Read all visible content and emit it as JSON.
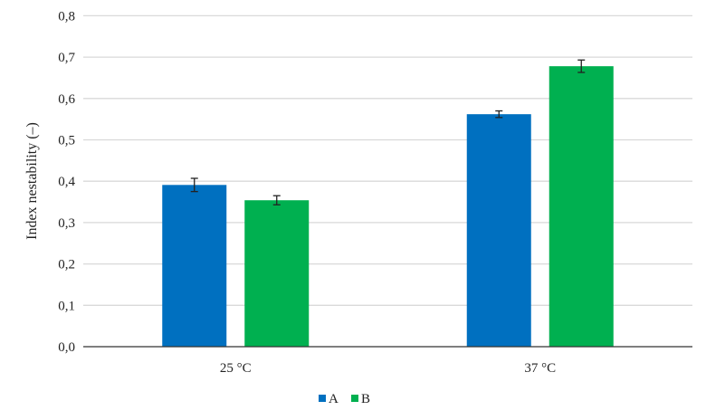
{
  "chart_data": {
    "type": "bar",
    "title": "",
    "xlabel": "",
    "ylabel": "Index nestability (–)",
    "categories": [
      "25 °C",
      "37 °C"
    ],
    "series": [
      {
        "name": "A",
        "values": [
          0.391,
          0.562
        ],
        "errors": [
          0.016,
          0.008
        ],
        "color": "#0070c0"
      },
      {
        "name": "B",
        "values": [
          0.354,
          0.678
        ],
        "errors": [
          0.011,
          0.015
        ],
        "color": "#00b050"
      }
    ],
    "ylim": [
      0,
      0.8
    ],
    "yticks": [
      "0,0",
      "0,1",
      "0,2",
      "0,3",
      "0,4",
      "0,5",
      "0,6",
      "0,7",
      "0,8"
    ],
    "grid": true,
    "legend": "bottom-center"
  }
}
